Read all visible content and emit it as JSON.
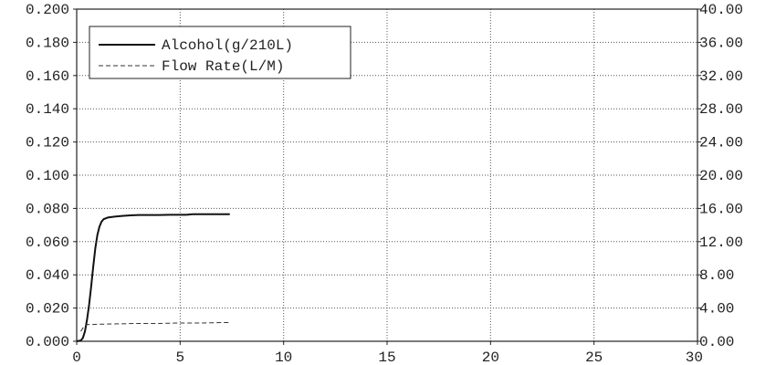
{
  "chart_data": {
    "type": "line",
    "title": "",
    "xlabel": "",
    "ylabel": "",
    "y2label": "",
    "xlim": [
      0,
      30
    ],
    "ylim": [
      0,
      0.2
    ],
    "y2lim": [
      0,
      40
    ],
    "grid": true,
    "legend_position": "top-left",
    "x_ticks": [
      "0",
      "5",
      "10",
      "15",
      "20",
      "25",
      "30"
    ],
    "y_ticks": [
      "0.000",
      "0.020",
      "0.040",
      "0.060",
      "0.080",
      "0.100",
      "0.120",
      "0.140",
      "0.160",
      "0.180",
      "0.200"
    ],
    "y2_ticks": [
      "0.00",
      "4.00",
      "8.00",
      "12.00",
      "16.00",
      "20.00",
      "24.00",
      "28.00",
      "32.00",
      "36.00",
      "40.00"
    ],
    "series": [
      {
        "name": "Alcohol(g/210L)",
        "axis": "left",
        "style": "solid",
        "color": "#111111",
        "x": [
          0,
          0.2,
          0.3,
          0.4,
          0.5,
          0.6,
          0.7,
          0.8,
          0.9,
          1.0,
          1.1,
          1.2,
          1.3,
          1.5,
          1.8,
          2.2,
          2.6,
          3.0,
          3.5,
          4.0,
          4.5,
          5.0,
          5.3,
          5.6,
          6.0,
          6.5,
          7.0,
          7.4
        ],
        "y": [
          0.0,
          0.0005,
          0.002,
          0.006,
          0.013,
          0.022,
          0.033,
          0.045,
          0.056,
          0.064,
          0.069,
          0.072,
          0.0735,
          0.0745,
          0.075,
          0.0755,
          0.0758,
          0.076,
          0.076,
          0.076,
          0.0762,
          0.0762,
          0.0762,
          0.0765,
          0.0765,
          0.0765,
          0.0765,
          0.0765
        ]
      },
      {
        "name": "Flow Rate(L/M)",
        "axis": "right",
        "style": "dashed",
        "color": "#333333",
        "x": [
          0.2,
          0.3,
          0.5,
          1.0,
          2.0,
          3.0,
          4.0,
          5.0,
          6.0,
          7.0,
          7.4
        ],
        "y": [
          1.2,
          1.6,
          2.0,
          2.05,
          2.1,
          2.15,
          2.15,
          2.2,
          2.2,
          2.25,
          2.25
        ]
      }
    ]
  }
}
